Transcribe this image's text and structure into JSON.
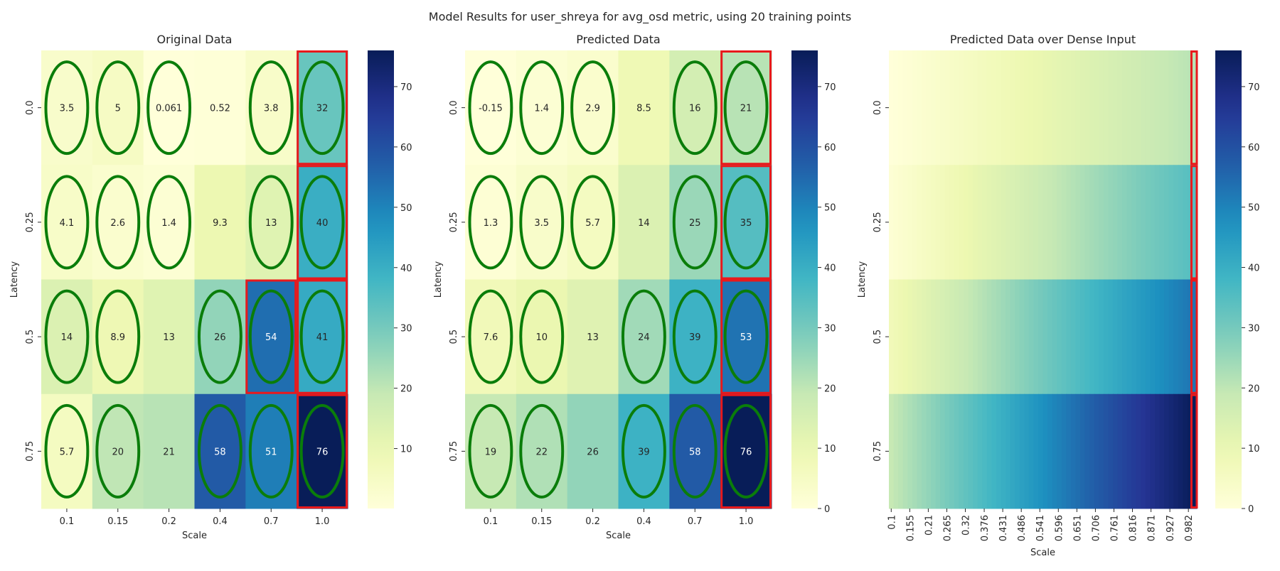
{
  "figure": {
    "suptitle": "Model Results for user_shreya for avg_osd metric, using 20 training points"
  },
  "colors": {
    "colormap": [
      "#ffffd9",
      "#edf8b1",
      "#c7e9b4",
      "#7fcdbb",
      "#41b6c4",
      "#1d91c0",
      "#225ea8",
      "#253494",
      "#081d58"
    ],
    "circle_color": "#0a7d0a",
    "highlight_color": "#e8191c",
    "text_dark": "#262626",
    "text_light": "#ffffff"
  },
  "chart_data": [
    {
      "type": "heatmap",
      "title": "Original Data",
      "xlabel": "Scale",
      "ylabel": "Latency",
      "x": [
        "0.1",
        "0.15",
        "0.2",
        "0.4",
        "0.7",
        "1.0"
      ],
      "y": [
        "0.0",
        "0.25",
        "0.5",
        "0.75"
      ],
      "values": [
        [
          3.5,
          5,
          0.061,
          0.52,
          3.8,
          32
        ],
        [
          4.1,
          2.6,
          1.4,
          9.3,
          13,
          40
        ],
        [
          14,
          8.9,
          13,
          26,
          54,
          41
        ],
        [
          5.7,
          20,
          21,
          58,
          51,
          76
        ]
      ],
      "annotations": [
        [
          "3.5",
          "5",
          "0.061",
          "0.52",
          "3.8",
          "32"
        ],
        [
          "4.1",
          "2.6",
          "1.4",
          "9.3",
          "13",
          "40"
        ],
        [
          "14",
          "8.9",
          "13",
          "26",
          "54",
          "41"
        ],
        [
          "5.7",
          "20",
          "21",
          "58",
          "51",
          "76"
        ]
      ],
      "circled_cells": [
        [
          0,
          0
        ],
        [
          0,
          1
        ],
        [
          0,
          2
        ],
        [
          0,
          4
        ],
        [
          0,
          5
        ],
        [
          1,
          0
        ],
        [
          1,
          1
        ],
        [
          1,
          2
        ],
        [
          1,
          4
        ],
        [
          1,
          5
        ],
        [
          2,
          0
        ],
        [
          2,
          1
        ],
        [
          2,
          3
        ],
        [
          2,
          4
        ],
        [
          2,
          5
        ],
        [
          3,
          0
        ],
        [
          3,
          1
        ],
        [
          3,
          3
        ],
        [
          3,
          4
        ],
        [
          3,
          5
        ]
      ],
      "highlighted_cells": [
        [
          0,
          5
        ],
        [
          1,
          5
        ],
        [
          2,
          4
        ],
        [
          2,
          5
        ],
        [
          3,
          5
        ]
      ],
      "colorbar": {
        "range": [
          0.061,
          76
        ],
        "ticks": [
          10,
          20,
          30,
          40,
          50,
          60,
          70
        ]
      }
    },
    {
      "type": "heatmap",
      "title": "Predicted Data",
      "xlabel": "Scale",
      "ylabel": "Latency",
      "x": [
        "0.1",
        "0.15",
        "0.2",
        "0.4",
        "0.7",
        "1.0"
      ],
      "y": [
        "0.0",
        "0.25",
        "0.5",
        "0.75"
      ],
      "values": [
        [
          -0.15,
          1.4,
          2.9,
          8.5,
          16,
          21
        ],
        [
          1.3,
          3.5,
          5.7,
          14,
          25,
          35
        ],
        [
          7.6,
          10,
          13,
          24,
          39,
          53
        ],
        [
          19,
          22,
          26,
          39,
          58,
          76
        ]
      ],
      "annotations": [
        [
          "-0.15",
          "1.4",
          "2.9",
          "8.5",
          "16",
          "21"
        ],
        [
          "1.3",
          "3.5",
          "5.7",
          "14",
          "25",
          "35"
        ],
        [
          "7.6",
          "10",
          "13",
          "24",
          "39",
          "53"
        ],
        [
          "19",
          "22",
          "26",
          "39",
          "58",
          "76"
        ]
      ],
      "circled_cells": [
        [
          0,
          0
        ],
        [
          0,
          1
        ],
        [
          0,
          2
        ],
        [
          0,
          4
        ],
        [
          0,
          5
        ],
        [
          1,
          0
        ],
        [
          1,
          1
        ],
        [
          1,
          2
        ],
        [
          1,
          4
        ],
        [
          1,
          5
        ],
        [
          2,
          0
        ],
        [
          2,
          1
        ],
        [
          2,
          3
        ],
        [
          2,
          4
        ],
        [
          2,
          5
        ],
        [
          3,
          0
        ],
        [
          3,
          1
        ],
        [
          3,
          3
        ],
        [
          3,
          4
        ],
        [
          3,
          5
        ]
      ],
      "highlighted_cells": [
        [
          0,
          5
        ],
        [
          1,
          5
        ],
        [
          2,
          5
        ],
        [
          3,
          5
        ]
      ],
      "colorbar": {
        "range": [
          0,
          76
        ],
        "ticks": [
          0,
          10,
          20,
          30,
          40,
          50,
          60,
          70
        ]
      }
    },
    {
      "type": "heatmap",
      "title": "Predicted Data over Dense Input",
      "xlabel": "Scale",
      "ylabel": "Latency",
      "x_tick_labels": [
        "0.1",
        "0.155",
        "0.21",
        "0.265",
        "0.32",
        "0.376",
        "0.431",
        "0.486",
        "0.541",
        "0.596",
        "0.651",
        "0.706",
        "0.761",
        "0.816",
        "0.871",
        "0.927",
        "0.982"
      ],
      "x_range": [
        0.1,
        1.0
      ],
      "y": [
        "0.0",
        "0.25",
        "0.5",
        "0.75"
      ],
      "row_values_at_min_scale": [
        0,
        1.3,
        7.6,
        19
      ],
      "row_values_at_max_scale": [
        21,
        35,
        53,
        76
      ],
      "highlighted_column": 1.0,
      "colorbar": {
        "range": [
          0,
          76
        ],
        "ticks": [
          0,
          10,
          20,
          30,
          40,
          50,
          60,
          70
        ]
      }
    }
  ]
}
